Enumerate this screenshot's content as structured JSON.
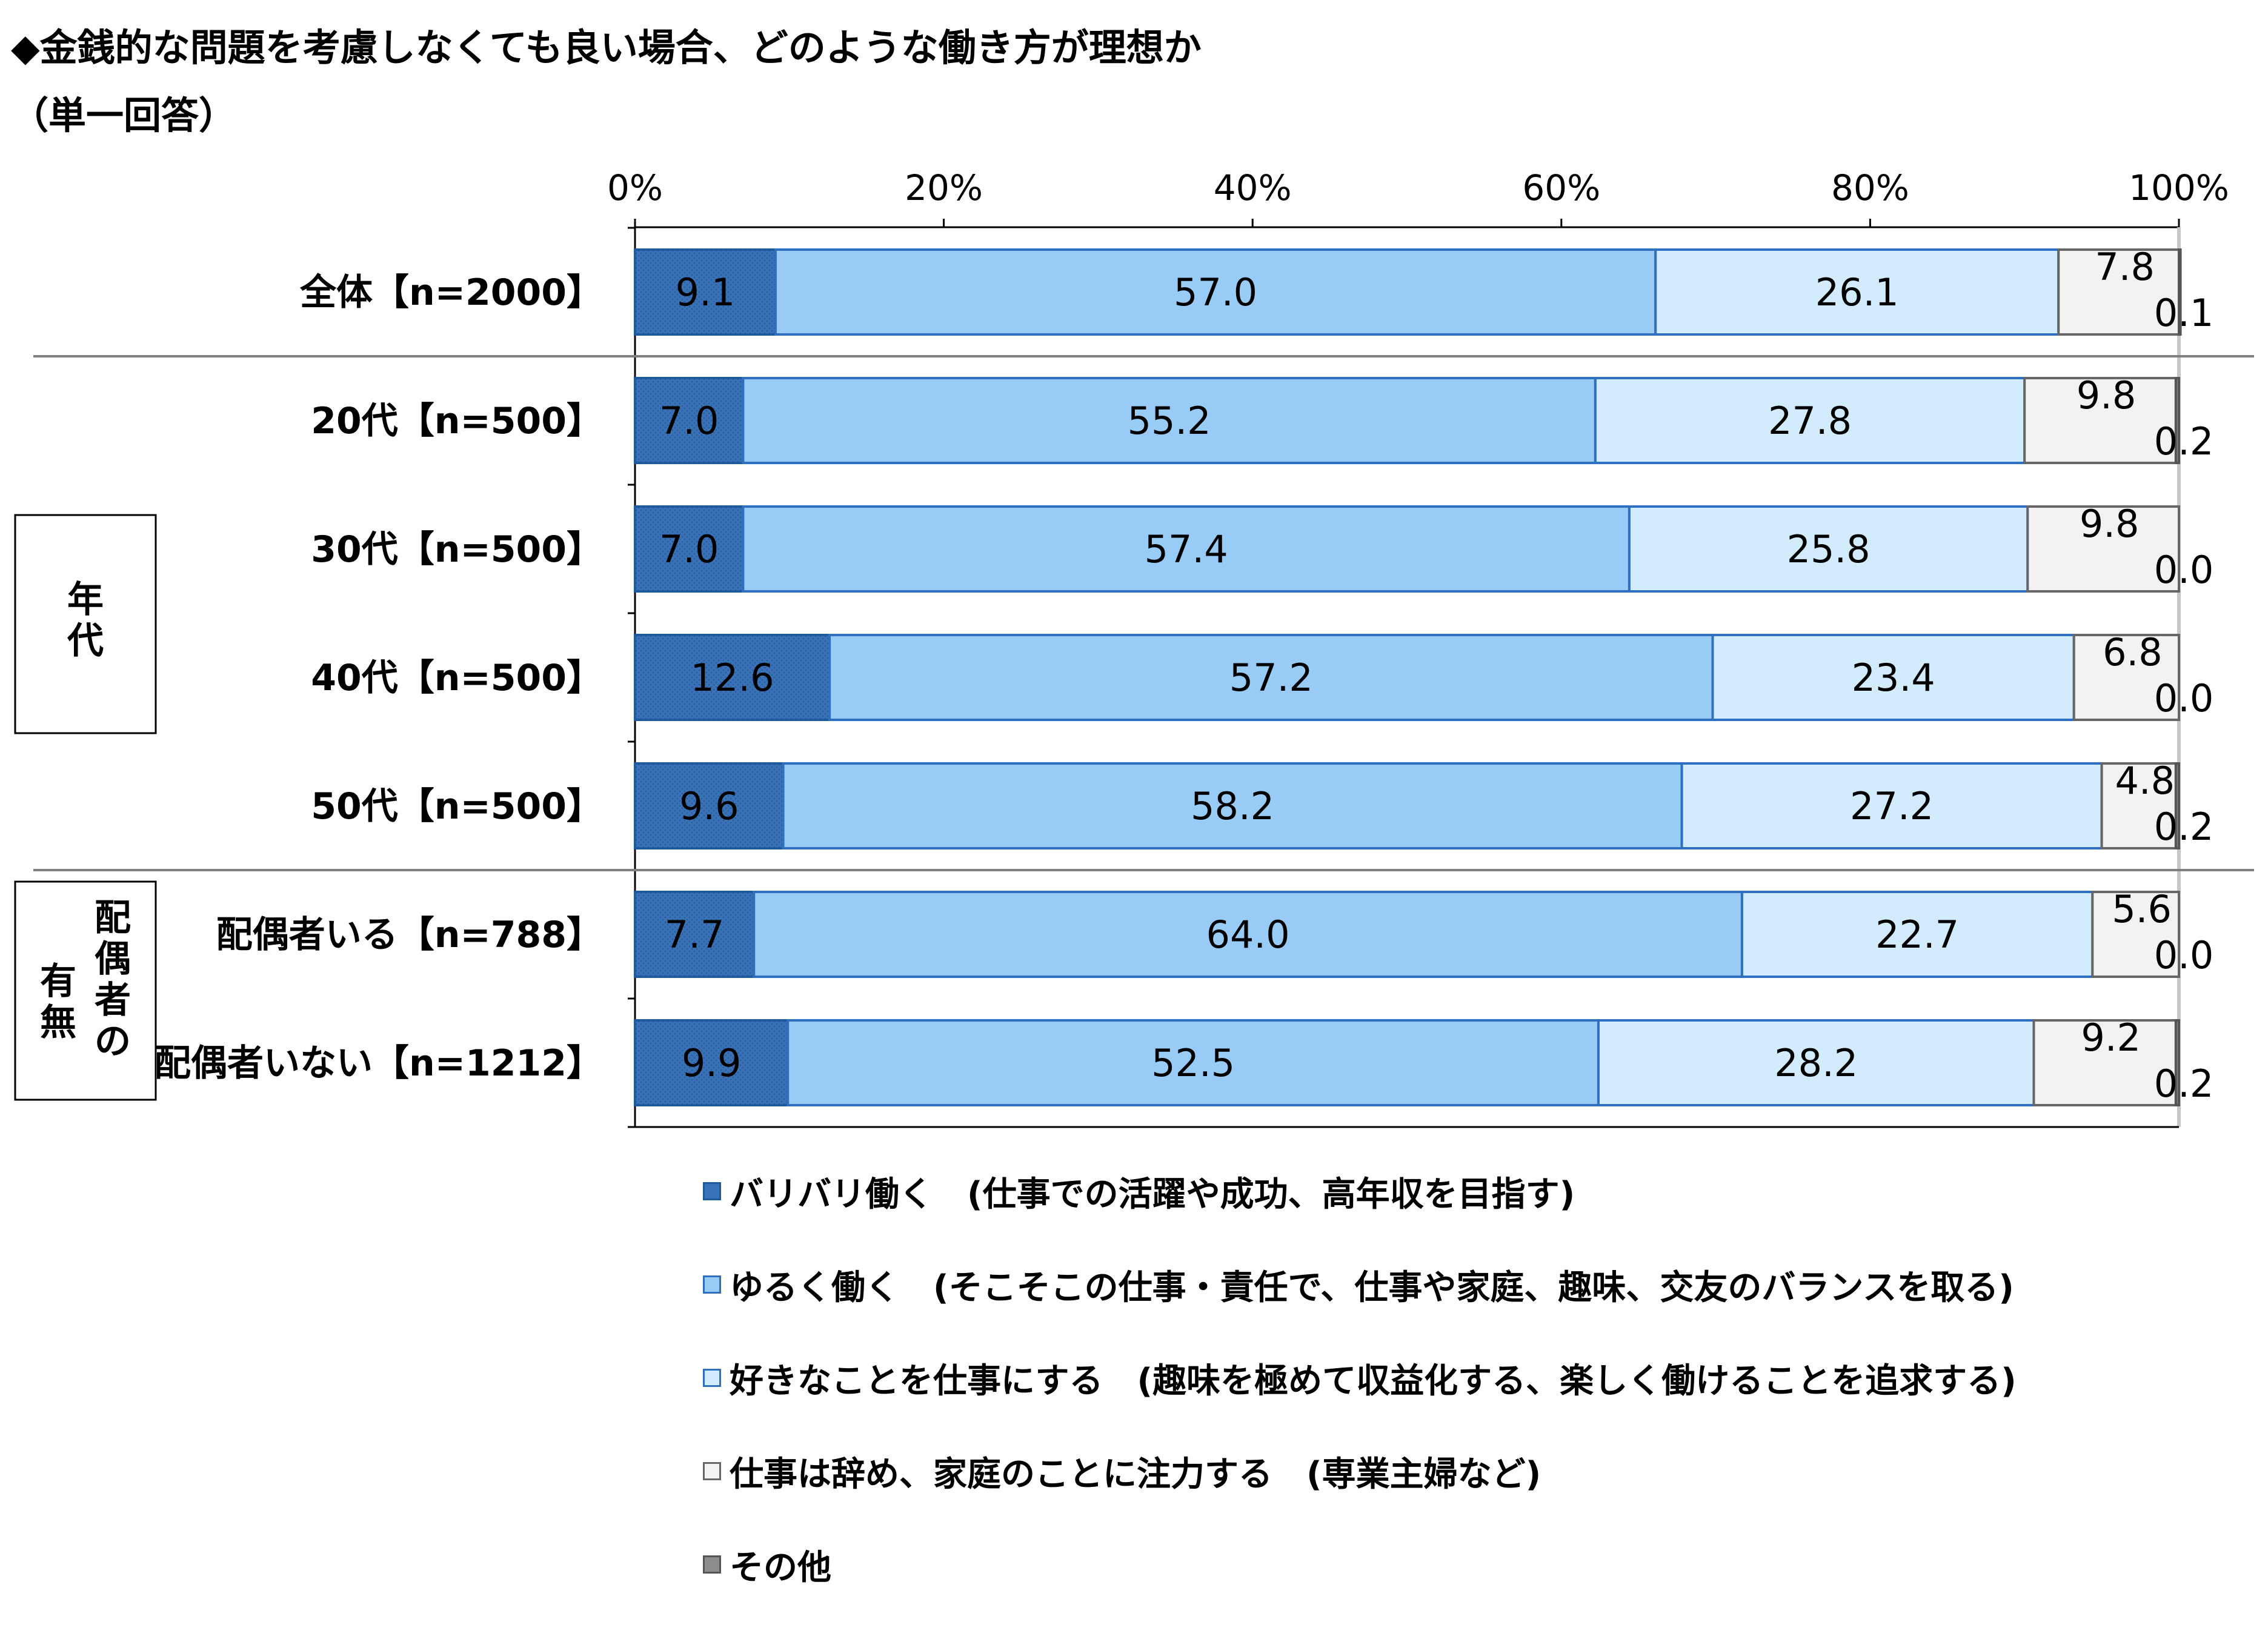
{
  "title": {
    "line1": "◆金銭的な問題を考慮しなくても良い場合、どのような働き方が理想か",
    "line2": "（単一回答）"
  },
  "chart_data": {
    "type": "bar",
    "orientation": "horizontal",
    "stacked": true,
    "xlim": [
      0,
      100
    ],
    "x_ticks": [
      "0%",
      "20%",
      "40%",
      "60%",
      "80%",
      "100%"
    ],
    "legend_placement": "bottom",
    "grid": false,
    "categories": [
      "全体【n=2000】",
      "20代【n=500】",
      "30代【n=500】",
      "40代【n=500】",
      "50代【n=500】",
      "配偶者いる【n=788】",
      "配偶者いない【n=1212】"
    ],
    "groups": [
      {
        "label": "年代",
        "members": [
          1,
          2,
          3,
          4
        ]
      },
      {
        "label": "配偶者の有無",
        "lines": [
          "配偶者の",
          "有無"
        ],
        "members": [
          5,
          6
        ]
      }
    ],
    "series": [
      {
        "name": "バリバリ働く　(仕事での活躍や成功、高年収を目指す)",
        "color": "#3a72b8",
        "values": [
          9.1,
          7.0,
          7.0,
          12.6,
          9.6,
          7.7,
          9.9
        ]
      },
      {
        "name": "ゆるく働く　(そこそこの仕事・責任で、仕事や家庭、趣味、交友のバランスを取る)",
        "color": "#99cbf7",
        "values": [
          57.0,
          55.2,
          57.4,
          57.2,
          58.2,
          64.0,
          52.5
        ]
      },
      {
        "name": "好きなことを仕事にする　(趣味を極めて収益化する、楽しく働けることを追求する)",
        "color": "#d3ecfd",
        "values": [
          26.1,
          27.8,
          25.8,
          23.4,
          27.2,
          22.7,
          28.2
        ]
      },
      {
        "name": "仕事は辞め、家庭のことに注力する　(専業主婦など)",
        "color": "#f2f2f2",
        "values": [
          7.8,
          9.8,
          9.8,
          6.8,
          4.8,
          5.6,
          9.2
        ]
      },
      {
        "name": "その他",
        "color": "#8c8c8c",
        "values": [
          0.1,
          0.2,
          0.0,
          0.0,
          0.2,
          0.0,
          0.2
        ]
      }
    ],
    "value_labels": [
      [
        "9.1",
        "57.0",
        "26.1",
        "7.8",
        "0.1"
      ],
      [
        "7.0",
        "55.2",
        "27.8",
        "9.8",
        "0.2"
      ],
      [
        "7.0",
        "57.4",
        "25.8",
        "9.8",
        "0.0"
      ],
      [
        "12.6",
        "57.2",
        "23.4",
        "6.8",
        "0.0"
      ],
      [
        "9.6",
        "58.2",
        "27.2",
        "4.8",
        "0.2"
      ],
      [
        "7.7",
        "64.0",
        "22.7",
        "5.6",
        "0.0"
      ],
      [
        "9.9",
        "52.5",
        "28.2",
        "9.2",
        "0.2"
      ]
    ]
  }
}
